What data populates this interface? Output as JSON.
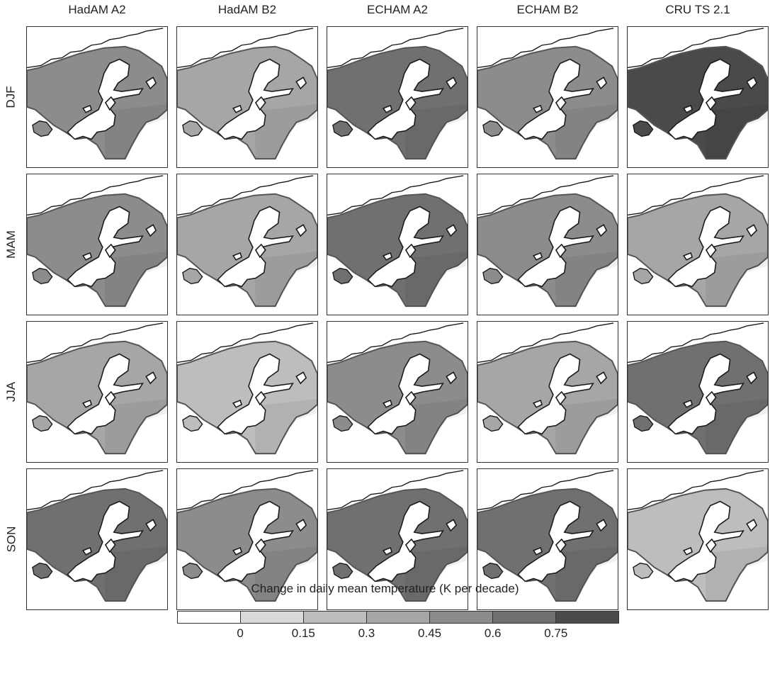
{
  "columns": [
    "HadAM A2",
    "HadAM B2",
    "ECHAM A2",
    "ECHAM B2",
    "CRU TS 2.1"
  ],
  "rows": [
    "DJF",
    "MAM",
    "JJA",
    "SON"
  ],
  "legend": {
    "title": "Change in daily mean temperature (K per decade)",
    "ticks": [
      "0",
      "0.15",
      "0.3",
      "0.45",
      "0.6",
      "0.75"
    ],
    "colors": [
      "#ffffff",
      "#d9d9d9",
      "#bdbdbd",
      "#a6a6a6",
      "#8c8c8c",
      "#707070",
      "#4a4a4a"
    ],
    "levels": [
      "< 0",
      "0–0.15",
      "0.15–0.3",
      "0.3–0.45",
      "0.45–0.6",
      "0.6–0.75",
      "> 0.75"
    ]
  },
  "panel_levels": [
    [
      3,
      2,
      4,
      3,
      5
    ],
    [
      3,
      2,
      4,
      3,
      2
    ],
    [
      2,
      1,
      3,
      2,
      4
    ],
    [
      4,
      3,
      4,
      4,
      1
    ]
  ],
  "colors": {
    "coast": "#1a1a1a",
    "catchment_border": "#555555",
    "sea": "#ffffff"
  }
}
